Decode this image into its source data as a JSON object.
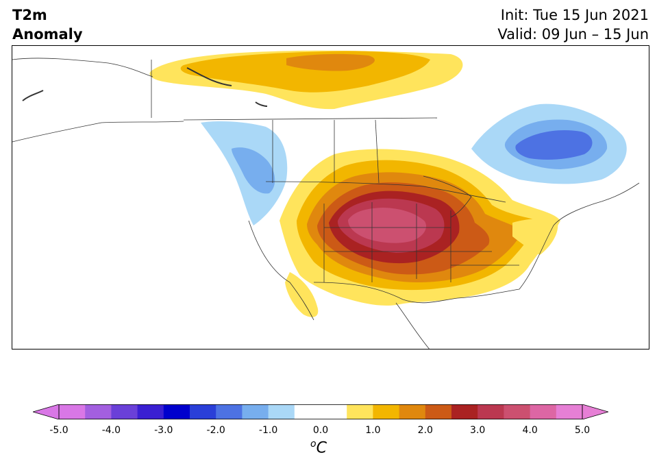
{
  "header": {
    "var_line1": "T2m",
    "var_line2": "Anomaly",
    "init": "Init: Tue 15 Jun 2021",
    "valid": "Valid: 09 Jun – 15 Jun"
  },
  "colorbar": {
    "unit_sup": "o",
    "unit": "C",
    "ticks": [
      "-5.0",
      "-4.0",
      "-3.0",
      "-2.0",
      "-1.0",
      "0.0",
      "1.0",
      "2.0",
      "3.0",
      "4.0",
      "5.0"
    ],
    "colors": [
      "#d977e6",
      "#a35fe0",
      "#6a40d8",
      "#3a1fd2",
      "#0000cd",
      "#2a3fd8",
      "#4d72e3",
      "#77aeee",
      "#aad8f7",
      "#ffffff",
      "#ffffff",
      "#ffe45c",
      "#f2b600",
      "#e0880e",
      "#cc5a16",
      "#aa2222",
      "#bb3850",
      "#cc5070",
      "#dd66a4",
      "#e67fd5"
    ],
    "arrow_low": "#d977e6",
    "arrow_high": "#e67fd5"
  },
  "map": {
    "land_color": "#ffffff",
    "border_color": "#333333",
    "levels": {
      "warm_1": "#ffe45c",
      "warm_2": "#f2b600",
      "warm_3": "#e0880e",
      "warm_4": "#cc5a16",
      "warm_5": "#aa2222",
      "warm_6": "#bb3850",
      "warm_7": "#cc5070",
      "cool_1": "#aad8f7",
      "cool_2": "#77aeee",
      "cool_3": "#4d72e3"
    }
  }
}
